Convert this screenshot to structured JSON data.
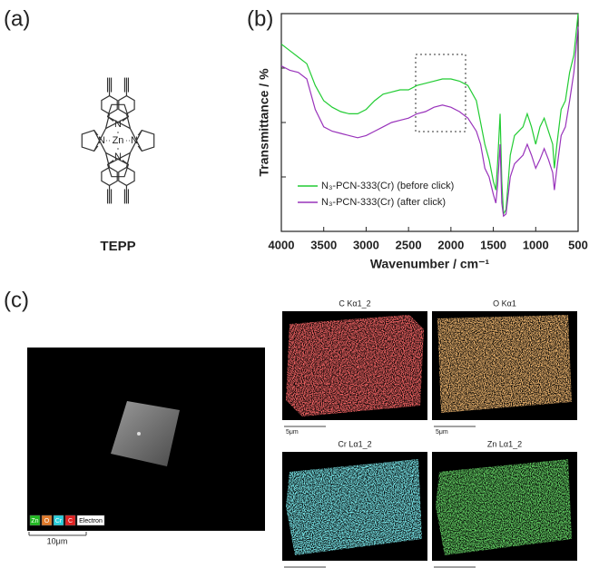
{
  "panel_labels": [
    "(a)",
    "(b)",
    "(c)"
  ],
  "molecule": {
    "name": "TEPP",
    "center_atom": "Zn",
    "n_atom": "N"
  },
  "chart_data": {
    "type": "line",
    "x_label": "Wavenumber / cm⁻¹",
    "y_label": "Transmittance / %",
    "x": [
      4000,
      3900,
      3800,
      3700,
      3600,
      3500,
      3400,
      3300,
      3200,
      3100,
      3000,
      2900,
      2800,
      2700,
      2600,
      2500,
      2400,
      2300,
      2200,
      2100,
      2000,
      1900,
      1800,
      1700,
      1650,
      1600,
      1550,
      1500,
      1470,
      1450,
      1420,
      1400,
      1380,
      1350,
      1300,
      1250,
      1200,
      1150,
      1100,
      1050,
      1000,
      950,
      900,
      850,
      800,
      780,
      750,
      700,
      650,
      600,
      550,
      500
    ],
    "series": [
      {
        "name": "N₃-PCN-333(Cr) (before click)",
        "color": "#22cc33",
        "values": [
          86,
          83,
          80,
          77,
          67,
          60,
          57,
          55,
          54,
          54,
          56,
          60,
          63,
          64,
          65,
          65,
          67,
          68,
          69,
          70,
          70,
          69,
          67,
          60,
          50,
          40,
          33,
          23,
          19,
          31,
          54,
          23,
          8,
          10,
          35,
          44,
          46,
          48,
          54,
          48,
          40,
          48,
          52,
          46,
          40,
          29,
          40,
          56,
          60,
          73,
          81,
          100
        ]
      },
      {
        "name": "N₃-PCN-333(Cr) (after click)",
        "color": "#9933bb",
        "values": [
          76,
          74,
          73,
          70,
          56,
          48,
          46,
          45,
          44,
          43,
          44,
          46,
          48,
          50,
          51,
          52,
          54,
          55,
          57,
          58,
          57,
          55,
          52,
          46,
          40,
          29,
          25,
          17,
          13,
          21,
          40,
          13,
          7,
          8,
          25,
          31,
          33,
          35,
          40,
          35,
          29,
          33,
          38,
          33,
          27,
          19,
          29,
          44,
          48,
          60,
          73,
          94
        ]
      }
    ],
    "xlim": [
      4000,
      500
    ],
    "ylim": [
      0,
      100
    ],
    "xticks": [
      4000,
      3500,
      3000,
      2500,
      2000,
      1500,
      1000,
      500
    ],
    "legend": "lower left"
  },
  "sem_image": {
    "legend": [
      {
        "label": "Zn",
        "color": "#22bb22"
      },
      {
        "label": "O",
        "color": "#e07a2a"
      },
      {
        "label": "Cr",
        "color": "#2ad0dd"
      },
      {
        "label": "C",
        "color": "#e02222"
      },
      {
        "label": "Electron",
        "color": "#ffffff"
      }
    ],
    "scale_bar": "10μm"
  },
  "eds_maps": [
    {
      "title": "C Kα1_2",
      "color": "#ee2222",
      "scale_bar": "5μm"
    },
    {
      "title": "O Kα1",
      "color": "#e07a2a",
      "scale_bar": "5μm"
    },
    {
      "title": "Cr Lα1_2",
      "color": "#33d6dd"
    },
    {
      "title": "Zn Lα1_2",
      "color": "#22aa22"
    }
  ]
}
